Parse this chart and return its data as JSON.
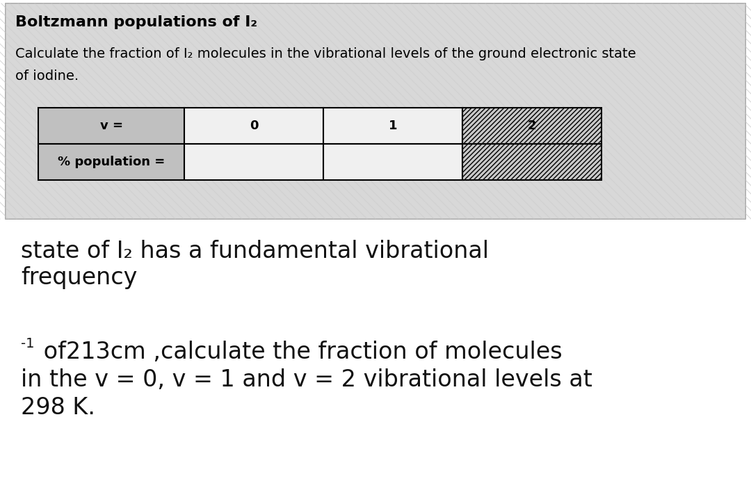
{
  "title": "Boltzmann populations of I₂",
  "subtitle_line1": "Calculate the fraction of I₂ molecules in the vibrational levels of the ground electronic state",
  "subtitle_line2": "of iodine.",
  "table_header_row": [
    "v =",
    "0",
    "1",
    "2"
  ],
  "table_data_row": [
    "% population =",
    "",
    "",
    ""
  ],
  "border_color": "#000000",
  "bg_color_top": "#d6d6d6",
  "bg_color_bottom": "#ffffff",
  "text1_line1": "state of I₂ has a fundamental vibrational",
  "text1_line2": "frequency",
  "text2_superscript": "-1",
  "text2_main_line1": " of213cm ,calculate the fraction of molecules",
  "text2_main_line2": "in the v = 0, v = 1 and v = 2 vibrational levels at",
  "text2_main_line3": "298 K.",
  "title_fontsize": 16,
  "subtitle_fontsize": 14,
  "table_fontsize": 13,
  "text1_fontsize": 24,
  "text2_fontsize": 24,
  "text2_sup_fontsize": 14
}
